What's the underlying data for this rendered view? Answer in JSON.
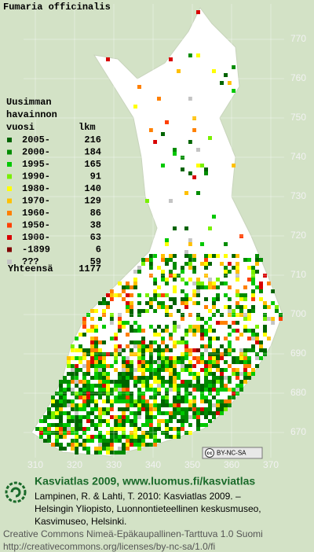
{
  "header": {
    "title": "Fumaria officinalis"
  },
  "legend": {
    "heading": [
      "Uusimman",
      "havainnon",
      "vuosi"
    ],
    "count_heading": "lkm",
    "rows": [
      {
        "label": "2005-",
        "count": 216,
        "color": "#006400"
      },
      {
        "label": "2000-",
        "count": 184,
        "color": "#008c00"
      },
      {
        "label": "1995-",
        "count": 165,
        "color": "#00c800"
      },
      {
        "label": "1990-",
        "count": 91,
        "color": "#78f000"
      },
      {
        "label": "1980-",
        "count": 140,
        "color": "#ffff00"
      },
      {
        "label": "1970-",
        "count": 129,
        "color": "#ffc000"
      },
      {
        "label": "1960-",
        "count": 86,
        "color": "#ff8000"
      },
      {
        "label": "1950-",
        "count": 38,
        "color": "#ff4000"
      },
      {
        "label": "1900-",
        "count": 63,
        "color": "#d80000"
      },
      {
        "label": "-1899",
        "count": 6,
        "color": "#800000"
      },
      {
        "label": "???",
        "count": 59,
        "color": "#c4c4c4"
      }
    ],
    "total_label": "Yhteensä",
    "total": 1177
  },
  "axes": {
    "y_labels": [
      770,
      760,
      750,
      740,
      730,
      720,
      710,
      700,
      690,
      680,
      670
    ],
    "x_labels": [
      310,
      320,
      330,
      340,
      350,
      360,
      370
    ]
  },
  "badge": {
    "icon": "cc",
    "text": "BY-NC-SA"
  },
  "footer": {
    "title": "Kasviatlas 2009, www.luomus.fi/kasviatlas",
    "citation": [
      "Lampinen, R. & Lahti, T. 2010: Kasviatlas 2009. –",
      "Helsingin Yliopisto, Luonnontieteellinen keskusmuseo,",
      "Kasvimuseo, Helsinki."
    ],
    "license": [
      "Creative Commons Nimeä-Epäkaupallinen-Tarttuva 1.0 Suomi",
      "http://creativecommons.org/licenses/by-nc-sa/1.0/fi"
    ]
  }
}
